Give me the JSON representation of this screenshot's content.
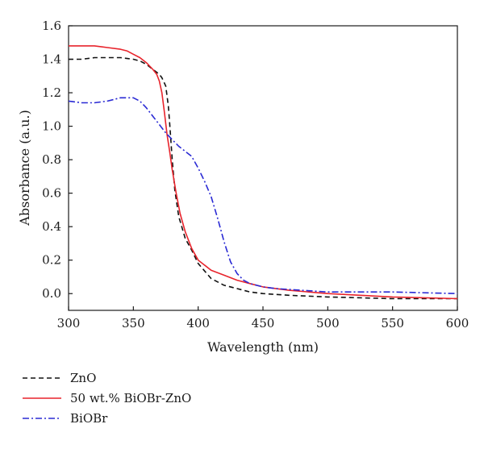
{
  "chart_data": {
    "type": "line",
    "xlabel": "Wavelength (nm)",
    "ylabel": "Absorbance (a.u.)",
    "xlim": [
      300,
      600
    ],
    "ylim": [
      -0.1,
      1.6
    ],
    "xticks": [
      "300",
      "350",
      "400",
      "450",
      "500",
      "550",
      "600"
    ],
    "yticks": [
      "0.0",
      "0.2",
      "0.4",
      "0.6",
      "0.8",
      "1.0",
      "1.2",
      "1.4",
      "1.6"
    ],
    "grid": false,
    "legend_position": "below-left",
    "series": [
      {
        "name": "ZnO",
        "color": "#111111",
        "style": "dashed",
        "x": [
          300,
          310,
          320,
          330,
          340,
          350,
          355,
          360,
          365,
          370,
          372,
          375,
          377,
          378,
          380,
          382,
          385,
          390,
          395,
          400,
          410,
          420,
          430,
          440,
          450,
          470,
          500,
          550,
          600
        ],
        "y": [
          1.4,
          1.4,
          1.41,
          1.41,
          1.41,
          1.4,
          1.39,
          1.37,
          1.34,
          1.31,
          1.29,
          1.24,
          1.12,
          1.02,
          0.8,
          0.62,
          0.46,
          0.33,
          0.26,
          0.18,
          0.09,
          0.05,
          0.03,
          0.01,
          0.0,
          -0.01,
          -0.02,
          -0.03,
          -0.03
        ]
      },
      {
        "name": "50 wt.% BiOBr-ZnO",
        "color": "#e8242c",
        "style": "solid",
        "x": [
          300,
          310,
          320,
          330,
          340,
          345,
          350,
          355,
          360,
          365,
          368,
          370,
          372,
          374,
          376,
          378,
          380,
          383,
          386,
          390,
          395,
          400,
          410,
          420,
          430,
          440,
          450,
          470,
          500,
          550,
          600
        ],
        "y": [
          1.48,
          1.48,
          1.48,
          1.47,
          1.46,
          1.45,
          1.43,
          1.41,
          1.38,
          1.34,
          1.31,
          1.27,
          1.2,
          1.08,
          0.95,
          0.85,
          0.74,
          0.6,
          0.48,
          0.37,
          0.27,
          0.2,
          0.14,
          0.11,
          0.08,
          0.06,
          0.04,
          0.02,
          0.0,
          -0.02,
          -0.03
        ]
      },
      {
        "name": "BiOBr",
        "color": "#2a2ad4",
        "style": "dashdot",
        "x": [
          300,
          310,
          320,
          330,
          340,
          345,
          350,
          355,
          360,
          365,
          370,
          375,
          380,
          385,
          390,
          395,
          400,
          405,
          410,
          415,
          420,
          425,
          430,
          435,
          440,
          450,
          460,
          480,
          500,
          550,
          600
        ],
        "y": [
          1.15,
          1.14,
          1.14,
          1.15,
          1.17,
          1.17,
          1.17,
          1.15,
          1.11,
          1.06,
          1.01,
          0.96,
          0.92,
          0.88,
          0.85,
          0.82,
          0.75,
          0.67,
          0.58,
          0.45,
          0.31,
          0.19,
          0.12,
          0.08,
          0.06,
          0.04,
          0.03,
          0.02,
          0.01,
          0.01,
          0.0
        ]
      }
    ]
  }
}
